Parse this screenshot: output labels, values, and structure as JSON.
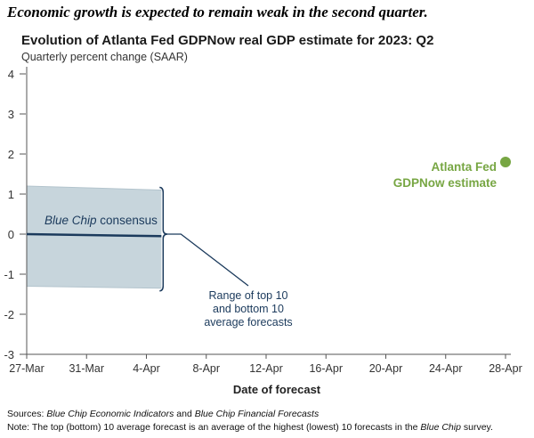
{
  "headline": "Economic growth is expected to remain weak in the second quarter.",
  "chart_data": {
    "type": "line",
    "title": "Evolution of Atlanta Fed GDPNow real GDP estimate for 2023: Q2",
    "subtitle": "Quarterly percent change (SAAR)",
    "xlabel": "Date of forecast",
    "ylabel": "",
    "x_ticks": [
      "27-Mar",
      "31-Mar",
      "4-Apr",
      "8-Apr",
      "12-Apr",
      "16-Apr",
      "20-Apr",
      "24-Apr",
      "28-Apr"
    ],
    "y_ticks": [
      "4",
      "3",
      "2",
      "1",
      "0",
      "-1",
      "-2",
      "-3"
    ],
    "ylim": [
      -3,
      4
    ],
    "xlim": [
      "27-Mar",
      "28-Apr"
    ],
    "grid": false,
    "series": [
      {
        "name": "Blue Chip consensus",
        "type": "line",
        "color": "#1b3a5c",
        "points": [
          [
            "27-Mar",
            0.0
          ],
          [
            "5-Apr",
            -0.05
          ]
        ]
      },
      {
        "name": "Range of top 10 and bottom 10 average forecasts",
        "type": "band",
        "color": "#c7d5dc",
        "points": [
          [
            "27-Mar",
            1.2,
            -1.3
          ],
          [
            "5-Apr",
            1.1,
            -1.35
          ]
        ]
      },
      {
        "name": "Atlanta Fed GDPNow estimate",
        "type": "scatter",
        "color": "#77a643",
        "points": [
          [
            "28-Apr",
            1.8
          ]
        ]
      }
    ],
    "annotations": {
      "consensus_label": "consensus",
      "consensus_label_italic": "Blue Chip",
      "range_label_lines": [
        "Range of top 10",
        "and bottom 10",
        "average forecasts"
      ],
      "gdpnow_label_lines": [
        "Atlanta Fed",
        "GDPNow estimate"
      ]
    }
  },
  "footnotes": {
    "sources_label": "Sources:",
    "sources_part1": "Blue Chip Economic Indicators",
    "sources_and": " and ",
    "sources_part2": "Blue Chip Financial Forecasts",
    "note_label": "Note:",
    "note_text": " The top (bottom) 10 average forecast is an average of the highest (lowest) 10 forecasts in the ",
    "note_italic": "Blue Chip",
    "note_end": " survey."
  }
}
